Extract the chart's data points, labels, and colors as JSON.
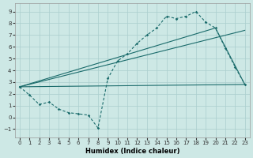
{
  "xlabel": "Humidex (Indice chaleur)",
  "bg_color": "#cde8e5",
  "line_color": "#1a6b6b",
  "grid_color": "#aacece",
  "xlim": [
    -0.5,
    23.5
  ],
  "ylim": [
    -1.7,
    9.7
  ],
  "xticks": [
    0,
    1,
    2,
    3,
    4,
    5,
    6,
    7,
    8,
    9,
    10,
    11,
    12,
    13,
    14,
    15,
    16,
    17,
    18,
    19,
    20,
    21,
    22,
    23
  ],
  "yticks": [
    -1,
    0,
    1,
    2,
    3,
    4,
    5,
    6,
    7,
    8,
    9
  ],
  "curve_x": [
    0,
    1,
    2,
    3,
    4,
    5,
    6,
    7,
    8,
    9,
    10,
    11,
    12,
    13,
    14,
    15,
    16,
    17,
    18,
    19,
    20,
    21,
    22,
    23
  ],
  "curve_y": [
    2.6,
    1.9,
    1.1,
    1.3,
    0.7,
    0.4,
    0.3,
    0.2,
    -0.9,
    3.3,
    4.8,
    5.4,
    6.3,
    7.0,
    7.6,
    8.6,
    8.4,
    8.6,
    9.0,
    8.1,
    7.6,
    5.9,
    4.3,
    2.8
  ],
  "line1_x": [
    0,
    23
  ],
  "line1_y": [
    2.6,
    2.8
  ],
  "line2_x": [
    0,
    20,
    23
  ],
  "line2_y": [
    2.6,
    7.6,
    2.8
  ],
  "line3_x": [
    0,
    23
  ],
  "line3_y": [
    2.6,
    7.4
  ]
}
